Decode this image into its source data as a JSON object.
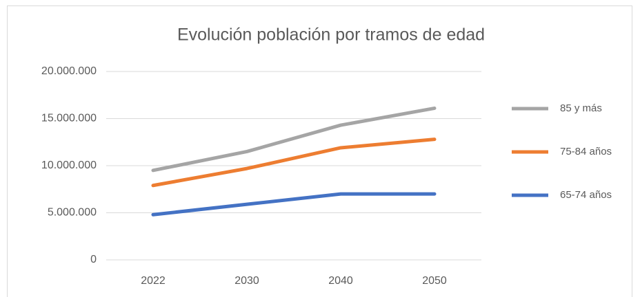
{
  "chart_data": {
    "type": "line",
    "stacked": true,
    "title": "Evolución población por tramos de edad",
    "categories": [
      "2022",
      "2030",
      "2040",
      "2050"
    ],
    "series": [
      {
        "name": "65-74 años",
        "color": "#4472c4",
        "values": [
          4800000,
          5900000,
          7000000,
          7000000
        ]
      },
      {
        "name": "75-84 años",
        "color": "#ed7d31",
        "values": [
          3100000,
          3800000,
          4900000,
          5800000
        ]
      },
      {
        "name": "85 y más",
        "color": "#a5a5a5",
        "values": [
          1600000,
          1800000,
          2400000,
          3300000
        ]
      }
    ],
    "ylim": [
      0,
      20000000
    ],
    "yticks": [
      0,
      {
        "value": 5000000,
        "label": "5.000.000"
      },
      {
        "value": 10000000,
        "label": "10.000.000"
      },
      {
        "value": 15000000,
        "label": "15.000.000"
      },
      {
        "value": 20000000,
        "label": "20.000.000"
      }
    ],
    "grid": true,
    "legend": "right"
  }
}
